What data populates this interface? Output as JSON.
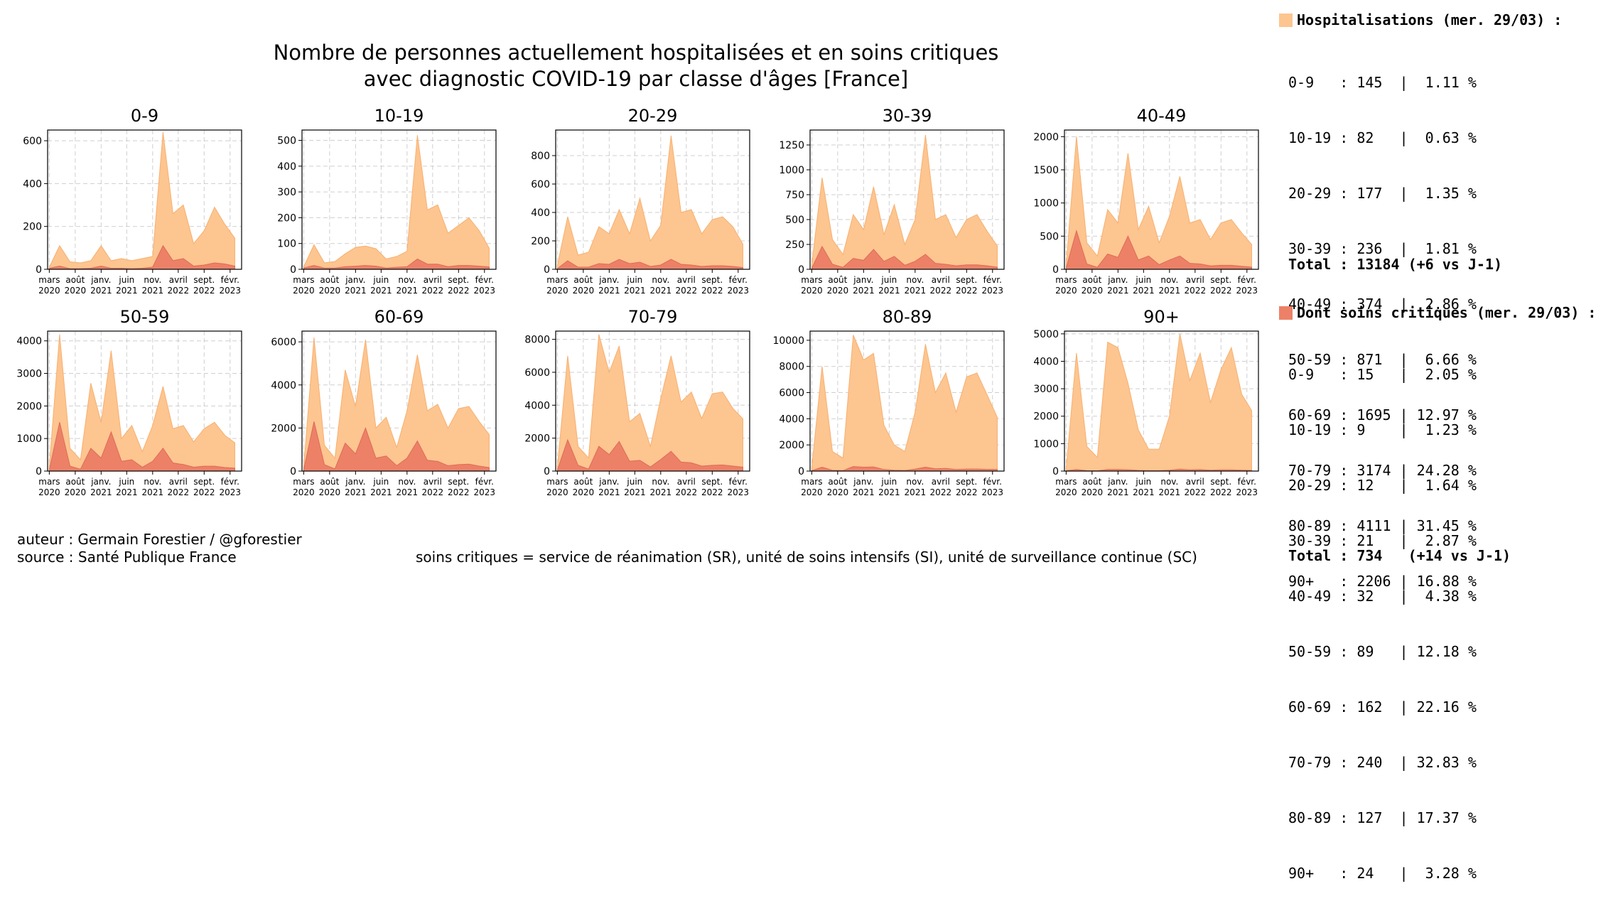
{
  "title_line1": "Nombre de personnes actuellement hospitalisées et en soins critiques",
  "title_line2": "avec diagnostic COVID-19 par classe d'âges [France]",
  "colors": {
    "hosp_fill": "#fdc590",
    "hosp_line": "#f7b06f",
    "crit_fill": "#ec8168",
    "crit_line": "#de6b55",
    "grid": "#b0b0b0"
  },
  "x_tick_labels": [
    [
      "mars",
      "2020"
    ],
    [
      "août",
      "2020"
    ],
    [
      "janv.",
      "2021"
    ],
    [
      "juin",
      "2021"
    ],
    [
      "nov.",
      "2021"
    ],
    [
      "avril",
      "2022"
    ],
    [
      "sept.",
      "2022"
    ],
    [
      "févr.",
      "2023"
    ]
  ],
  "chart_data": [
    {
      "type": "area",
      "title": "0-9",
      "ylim": [
        0,
        650
      ],
      "yticks": [
        "0",
        "200",
        "400",
        "600"
      ],
      "ytick_values": [
        0,
        200,
        400,
        600
      ],
      "x": [
        "2020-03",
        "2020-05",
        "2020-07",
        "2020-09",
        "2020-11",
        "2021-01",
        "2021-03",
        "2021-05",
        "2021-07",
        "2021-09",
        "2021-11",
        "2022-01",
        "2022-03",
        "2022-05",
        "2022-07",
        "2022-09",
        "2022-11",
        "2023-01",
        "2023-03"
      ],
      "series": [
        {
          "name": "Hospitalisations",
          "values": [
            10,
            110,
            35,
            30,
            40,
            110,
            40,
            50,
            40,
            50,
            60,
            640,
            260,
            300,
            120,
            180,
            290,
            210,
            145
          ]
        },
        {
          "name": "Soins critiques",
          "values": [
            5,
            15,
            3,
            3,
            5,
            15,
            5,
            5,
            3,
            5,
            10,
            110,
            40,
            50,
            15,
            20,
            30,
            25,
            15
          ]
        }
      ],
      "grid": true
    },
    {
      "type": "area",
      "title": "10-19",
      "ylim": [
        0,
        540
      ],
      "yticks": [
        "0",
        "100",
        "200",
        "300",
        "400",
        "500"
      ],
      "ytick_values": [
        0,
        100,
        200,
        300,
        400,
        500
      ],
      "x": [
        "2020-03",
        "2020-05",
        "2020-07",
        "2020-09",
        "2020-11",
        "2021-01",
        "2021-03",
        "2021-05",
        "2021-07",
        "2021-09",
        "2021-11",
        "2022-01",
        "2022-03",
        "2022-05",
        "2022-07",
        "2022-09",
        "2022-11",
        "2023-01",
        "2023-03"
      ],
      "series": [
        {
          "name": "Hospitalisations",
          "values": [
            10,
            95,
            25,
            30,
            60,
            85,
            90,
            80,
            40,
            50,
            70,
            520,
            230,
            250,
            140,
            170,
            200,
            150,
            82
          ]
        },
        {
          "name": "Soins critiques",
          "values": [
            5,
            15,
            5,
            5,
            10,
            12,
            15,
            12,
            5,
            8,
            10,
            40,
            20,
            20,
            10,
            15,
            15,
            12,
            9
          ]
        }
      ],
      "grid": true
    },
    {
      "type": "area",
      "title": "20-29",
      "ylim": [
        0,
        980
      ],
      "yticks": [
        "0",
        "200",
        "400",
        "600",
        "800"
      ],
      "ytick_values": [
        0,
        200,
        400,
        600,
        800
      ],
      "x": [
        "2020-03",
        "2020-05",
        "2020-07",
        "2020-09",
        "2020-11",
        "2021-01",
        "2021-03",
        "2021-05",
        "2021-07",
        "2021-09",
        "2021-11",
        "2022-01",
        "2022-03",
        "2022-05",
        "2022-07",
        "2022-09",
        "2022-11",
        "2023-01",
        "2023-03"
      ],
      "series": [
        {
          "name": "Hospitalisations",
          "values": [
            30,
            370,
            100,
            120,
            300,
            250,
            420,
            250,
            500,
            200,
            310,
            940,
            400,
            420,
            250,
            350,
            370,
            300,
            177
          ]
        },
        {
          "name": "Soins critiques",
          "values": [
            5,
            60,
            15,
            15,
            40,
            35,
            70,
            40,
            50,
            20,
            30,
            70,
            35,
            30,
            20,
            25,
            25,
            20,
            12
          ]
        }
      ],
      "grid": true
    },
    {
      "type": "area",
      "title": "30-39",
      "ylim": [
        0,
        1400
      ],
      "yticks": [
        "0",
        "250",
        "500",
        "750",
        "1000",
        "1250"
      ],
      "ytick_values": [
        0,
        250,
        500,
        750,
        1000,
        1250
      ],
      "x": [
        "2020-03",
        "2020-05",
        "2020-07",
        "2020-09",
        "2020-11",
        "2021-01",
        "2021-03",
        "2021-05",
        "2021-07",
        "2021-09",
        "2021-11",
        "2022-01",
        "2022-03",
        "2022-05",
        "2022-07",
        "2022-09",
        "2022-11",
        "2023-01",
        "2023-03"
      ],
      "series": [
        {
          "name": "Hospitalisations",
          "values": [
            50,
            920,
            300,
            150,
            550,
            400,
            830,
            350,
            650,
            250,
            500,
            1350,
            500,
            550,
            320,
            500,
            550,
            380,
            236
          ]
        },
        {
          "name": "Soins critiques",
          "values": [
            10,
            230,
            50,
            20,
            110,
            90,
            200,
            80,
            130,
            40,
            80,
            150,
            60,
            50,
            35,
            45,
            45,
            35,
            21
          ]
        }
      ],
      "grid": true
    },
    {
      "type": "area",
      "title": "40-49",
      "ylim": [
        0,
        2100
      ],
      "yticks": [
        "0",
        "500",
        "1000",
        "1500",
        "2000"
      ],
      "ytick_values": [
        0,
        500,
        1000,
        1500,
        2000
      ],
      "x": [
        "2020-03",
        "2020-05",
        "2020-07",
        "2020-09",
        "2020-11",
        "2021-01",
        "2021-03",
        "2021-05",
        "2021-07",
        "2021-09",
        "2021-11",
        "2022-01",
        "2022-03",
        "2022-05",
        "2022-07",
        "2022-09",
        "2022-11",
        "2023-01",
        "2023-03"
      ],
      "series": [
        {
          "name": "Hospitalisations",
          "values": [
            80,
            2000,
            400,
            200,
            900,
            700,
            1750,
            600,
            950,
            400,
            800,
            1400,
            700,
            750,
            450,
            700,
            750,
            550,
            374
          ]
        },
        {
          "name": "Soins critiques",
          "values": [
            20,
            580,
            80,
            30,
            230,
            180,
            500,
            140,
            200,
            70,
            140,
            200,
            90,
            80,
            50,
            60,
            60,
            45,
            32
          ]
        }
      ],
      "grid": true
    },
    {
      "type": "area",
      "title": "50-59",
      "ylim": [
        0,
        4300
      ],
      "yticks": [
        "0",
        "1000",
        "2000",
        "3000",
        "4000"
      ],
      "ytick_values": [
        0,
        1000,
        2000,
        3000,
        4000
      ],
      "x": [
        "2020-03",
        "2020-05",
        "2020-07",
        "2020-09",
        "2020-11",
        "2021-01",
        "2021-03",
        "2021-05",
        "2021-07",
        "2021-09",
        "2021-11",
        "2022-01",
        "2022-03",
        "2022-05",
        "2022-07",
        "2022-09",
        "2022-11",
        "2023-01",
        "2023-03"
      ],
      "series": [
        {
          "name": "Hospitalisations",
          "values": [
            150,
            4200,
            700,
            350,
            2700,
            1500,
            3700,
            1000,
            1400,
            600,
            1400,
            2600,
            1300,
            1400,
            900,
            1300,
            1500,
            1100,
            871
          ]
        },
        {
          "name": "Soins critiques",
          "values": [
            40,
            1500,
            150,
            60,
            700,
            400,
            1200,
            300,
            350,
            120,
            300,
            700,
            250,
            200,
            120,
            150,
            150,
            110,
            89
          ]
        }
      ],
      "grid": true
    },
    {
      "type": "area",
      "title": "60-69",
      "ylim": [
        0,
        6500
      ],
      "yticks": [
        "0",
        "2000",
        "4000",
        "6000"
      ],
      "ytick_values": [
        0,
        2000,
        4000,
        6000
      ],
      "x": [
        "2020-03",
        "2020-05",
        "2020-07",
        "2020-09",
        "2020-11",
        "2021-01",
        "2021-03",
        "2021-05",
        "2021-07",
        "2021-09",
        "2021-11",
        "2022-01",
        "2022-03",
        "2022-05",
        "2022-07",
        "2022-09",
        "2022-11",
        "2023-01",
        "2023-03"
      ],
      "series": [
        {
          "name": "Hospitalisations",
          "values": [
            200,
            6200,
            1200,
            600,
            4700,
            3000,
            6100,
            2000,
            2500,
            1100,
            2800,
            5400,
            2800,
            3100,
            2000,
            2900,
            3000,
            2300,
            1695
          ]
        },
        {
          "name": "Soins critiques",
          "values": [
            60,
            2300,
            300,
            100,
            1300,
            800,
            2000,
            600,
            700,
            250,
            600,
            1400,
            500,
            450,
            250,
            300,
            320,
            230,
            162
          ]
        }
      ],
      "grid": true
    },
    {
      "type": "area",
      "title": "70-79",
      "ylim": [
        0,
        8500
      ],
      "yticks": [
        "0",
        "2000",
        "4000",
        "6000",
        "8000"
      ],
      "ytick_values": [
        0,
        2000,
        4000,
        6000,
        8000
      ],
      "x": [
        "2020-03",
        "2020-05",
        "2020-07",
        "2020-09",
        "2020-11",
        "2021-01",
        "2021-03",
        "2021-05",
        "2021-07",
        "2021-09",
        "2021-11",
        "2022-01",
        "2022-03",
        "2022-05",
        "2022-07",
        "2022-09",
        "2022-11",
        "2023-01",
        "2023-03"
      ],
      "series": [
        {
          "name": "Hospitalisations",
          "values": [
            250,
            7000,
            1500,
            800,
            8300,
            6000,
            7600,
            3000,
            3500,
            1500,
            4400,
            7000,
            4200,
            4800,
            3200,
            4700,
            4800,
            3800,
            3174
          ]
        },
        {
          "name": "Soins critiques",
          "values": [
            70,
            1900,
            350,
            120,
            1500,
            1000,
            1800,
            600,
            650,
            250,
            700,
            1200,
            550,
            500,
            300,
            350,
            370,
            300,
            240
          ]
        }
      ],
      "grid": true
    },
    {
      "type": "area",
      "title": "80-89",
      "ylim": [
        0,
        10700
      ],
      "yticks": [
        "0",
        "2000",
        "4000",
        "6000",
        "8000",
        "10000"
      ],
      "ytick_values": [
        0,
        2000,
        4000,
        6000,
        8000,
        10000
      ],
      "x": [
        "2020-03",
        "2020-05",
        "2020-07",
        "2020-09",
        "2020-11",
        "2021-01",
        "2021-03",
        "2021-05",
        "2021-07",
        "2021-09",
        "2021-11",
        "2022-01",
        "2022-03",
        "2022-05",
        "2022-07",
        "2022-09",
        "2022-11",
        "2023-01",
        "2023-03"
      ],
      "series": [
        {
          "name": "Hospitalisations",
          "values": [
            300,
            8000,
            1500,
            1000,
            10400,
            8500,
            9000,
            3500,
            2000,
            1500,
            4500,
            9700,
            6000,
            7500,
            4500,
            7200,
            7500,
            5800,
            4111
          ]
        },
        {
          "name": "Soins critiques",
          "values": [
            40,
            300,
            60,
            40,
            350,
            300,
            320,
            120,
            70,
            50,
            150,
            300,
            180,
            200,
            120,
            160,
            160,
            130,
            127
          ]
        }
      ],
      "grid": true
    },
    {
      "type": "area",
      "title": "90+",
      "ylim": [
        0,
        5100
      ],
      "yticks": [
        "0",
        "1000",
        "2000",
        "3000",
        "4000",
        "5000"
      ],
      "ytick_values": [
        0,
        1000,
        2000,
        3000,
        4000,
        5000
      ],
      "x": [
        "2020-03",
        "2020-05",
        "2020-07",
        "2020-09",
        "2020-11",
        "2021-01",
        "2021-03",
        "2021-05",
        "2021-07",
        "2021-09",
        "2021-11",
        "2022-01",
        "2022-03",
        "2022-05",
        "2022-07",
        "2022-09",
        "2022-11",
        "2023-01",
        "2023-03"
      ],
      "series": [
        {
          "name": "Hospitalisations",
          "values": [
            100,
            4300,
            900,
            500,
            4700,
            4500,
            3200,
            1500,
            800,
            800,
            2000,
            5000,
            3300,
            4300,
            2500,
            3700,
            4500,
            2800,
            2206
          ]
        },
        {
          "name": "Soins critiques",
          "values": [
            10,
            60,
            15,
            10,
            60,
            60,
            50,
            25,
            15,
            15,
            30,
            70,
            45,
            55,
            30,
            45,
            45,
            30,
            24
          ]
        }
      ],
      "grid": true
    }
  ],
  "legend": {
    "hosp_header": "Hospitalisations (mer. 29/03) :",
    "hosp_rows": [
      "0-9   : 145  |  1.11 %",
      "10-19 : 82   |  0.63 %",
      "20-29 : 177  |  1.35 %",
      "30-39 : 236  |  1.81 %",
      "40-49 : 374  |  2.86 %",
      "50-59 : 871  |  6.66 %",
      "60-69 : 1695 | 12.97 %",
      "70-79 : 3174 | 24.28 %",
      "80-89 : 4111 | 31.45 %",
      "90+   : 2206 | 16.88 %"
    ],
    "hosp_total": "Total : 13184 (+6 vs J-1)",
    "crit_header": "Dont soins critiques (mer. 29/03) :",
    "crit_rows": [
      "0-9   : 15   |  2.05 %",
      "10-19 : 9    |  1.23 %",
      "20-29 : 12   |  1.64 %",
      "30-39 : 21   |  2.87 %",
      "40-49 : 32   |  4.38 %",
      "50-59 : 89   | 12.18 %",
      "60-69 : 162  | 22.16 %",
      "70-79 : 240  | 32.83 %",
      "80-89 : 127  | 17.37 %",
      "90+   : 24   |  3.28 %"
    ],
    "crit_total": "Total : 734   (+14 vs J-1)"
  },
  "footer": {
    "author": "auteur : Germain Forestier / @gforestier",
    "source": "source : Santé Publique France",
    "note": "soins critiques = service de réanimation (SR), unité de soins intensifs (SI), unité de surveillance continue (SC)"
  }
}
